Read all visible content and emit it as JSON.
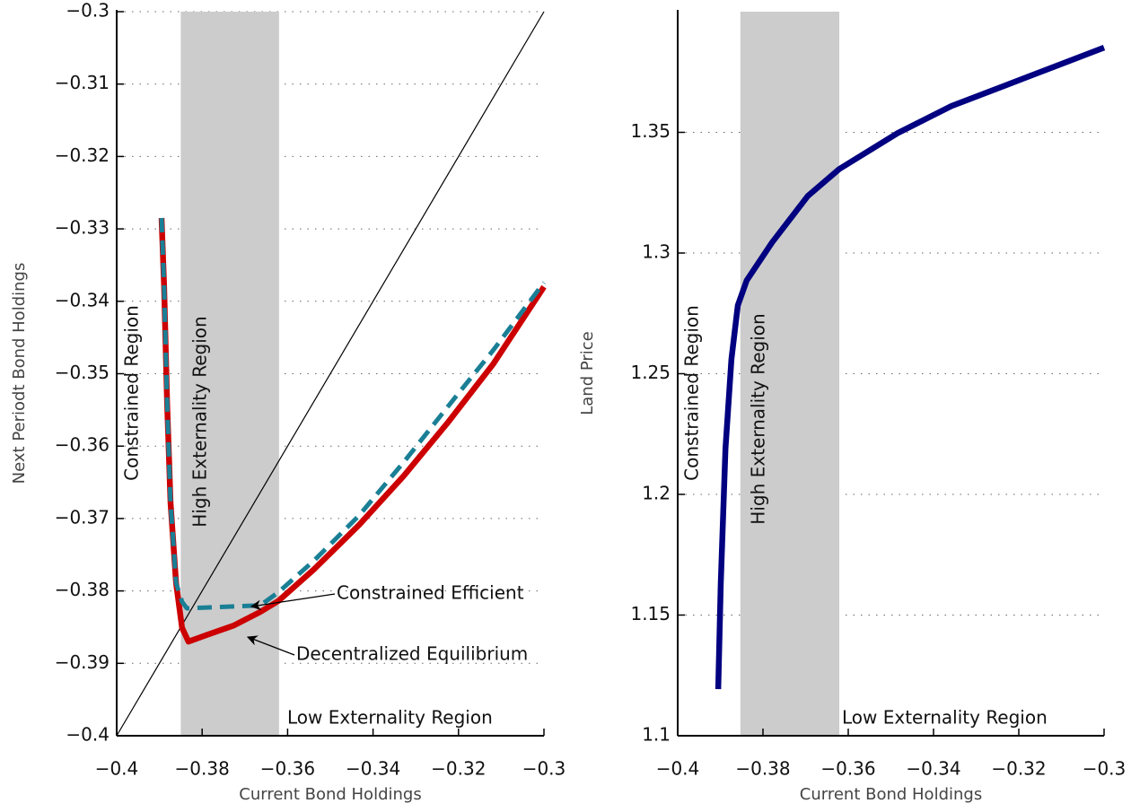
{
  "chart_data": [
    {
      "type": "line",
      "xlabel": "Current Bond Holdings",
      "ylabel": "Next Periodt Bond Holdings",
      "xlim": [
        -0.4,
        -0.3
      ],
      "ylim": [
        -0.4,
        -0.3
      ],
      "xticks": [
        {
          "value": -0.4,
          "label": "−0.4"
        },
        {
          "value": -0.38,
          "label": "−0.38"
        },
        {
          "value": -0.36,
          "label": "−0.36"
        },
        {
          "value": -0.34,
          "label": "−0.34"
        },
        {
          "value": -0.32,
          "label": "−0.32"
        },
        {
          "value": -0.3,
          "label": "−0.3"
        }
      ],
      "yticks": [
        {
          "value": -0.4,
          "label": "−0.4"
        },
        {
          "value": -0.39,
          "label": "−0.39"
        },
        {
          "value": -0.38,
          "label": "−0.38"
        },
        {
          "value": -0.37,
          "label": "−0.37"
        },
        {
          "value": -0.36,
          "label": "−0.36"
        },
        {
          "value": -0.35,
          "label": "−0.35"
        },
        {
          "value": -0.34,
          "label": "−0.34"
        },
        {
          "value": -0.33,
          "label": "−0.33"
        },
        {
          "value": -0.32,
          "label": "−0.32"
        },
        {
          "value": -0.31,
          "label": "−0.31"
        },
        {
          "value": -0.3,
          "label": "−0.3"
        }
      ],
      "grid": true,
      "shade": [
        -0.385,
        -0.362
      ],
      "shade_color": "#cccccc",
      "annotations": [
        "Constrained Region",
        "High Externality Region",
        "Low Externality Region"
      ],
      "diagonal": {
        "x": [
          -0.4,
          -0.3
        ],
        "values": [
          -0.4,
          -0.3
        ],
        "color": "#000000"
      },
      "series": [
        {
          "name": "Decentralized Equilibrium",
          "color": "#cc0000",
          "dash": false,
          "x": [
            -0.3895,
            -0.3889,
            -0.3882,
            -0.3874,
            -0.3861,
            -0.3847,
            -0.3832,
            -0.379,
            -0.3727,
            -0.3664,
            -0.3622,
            -0.3538,
            -0.3433,
            -0.3328,
            -0.3223,
            -0.3118,
            -0.3
          ],
          "values": [
            -0.3285,
            -0.338,
            -0.354,
            -0.3678,
            -0.3789,
            -0.3851,
            -0.387,
            -0.3861,
            -0.3848,
            -0.3829,
            -0.3814,
            -0.377,
            -0.3709,
            -0.3641,
            -0.3566,
            -0.3486,
            -0.338
          ]
        },
        {
          "name": "Constrained Efficient",
          "color": "#1a7f95",
          "dash": true,
          "x": [
            -0.3895,
            -0.3889,
            -0.3882,
            -0.3874,
            -0.3861,
            -0.3847,
            -0.3836,
            -0.3664,
            -0.3622,
            -0.3538,
            -0.3433,
            -0.3328,
            -0.3223,
            -0.3118,
            -0.3
          ],
          "values": [
            -0.3285,
            -0.338,
            -0.354,
            -0.3678,
            -0.3789,
            -0.3815,
            -0.3824,
            -0.382,
            -0.3802,
            -0.3758,
            -0.3696,
            -0.3622,
            -0.3544,
            -0.3467,
            -0.3374
          ]
        }
      ]
    },
    {
      "type": "line",
      "xlabel": "Current Bond Holdings",
      "ylabel": "Land Price",
      "xlim": [
        -0.4,
        -0.3
      ],
      "ylim": [
        1.1,
        1.4
      ],
      "xticks": [
        {
          "value": -0.4,
          "label": "−0.4"
        },
        {
          "value": -0.38,
          "label": "−0.38"
        },
        {
          "value": -0.36,
          "label": "−0.36"
        },
        {
          "value": -0.34,
          "label": "−0.34"
        },
        {
          "value": -0.32,
          "label": "−0.32"
        },
        {
          "value": -0.3,
          "label": "−0.3"
        }
      ],
      "yticks": [
        1.1,
        1.15,
        1.2,
        1.25,
        1.3,
        1.35
      ],
      "grid": true,
      "shade": [
        -0.3853,
        -0.3621
      ],
      "shade_color": "#cccccc",
      "annotations": [
        "Constrained Region",
        "High Externality Region",
        "Low Externality Region"
      ],
      "series": [
        {
          "color": "#000080",
          "dash": false,
          "x": [
            -0.3905,
            -0.3899,
            -0.3888,
            -0.3874,
            -0.3859,
            -0.3838,
            -0.3779,
            -0.3695,
            -0.3621,
            -0.3484,
            -0.3358,
            -0.3232,
            -0.3105,
            -0.3
          ],
          "values": [
            1.1193,
            1.1632,
            1.2189,
            1.256,
            1.2783,
            1.2887,
            1.3043,
            1.3236,
            1.3348,
            1.3497,
            1.3609,
            1.3694,
            1.378,
            1.3851
          ]
        }
      ]
    }
  ]
}
